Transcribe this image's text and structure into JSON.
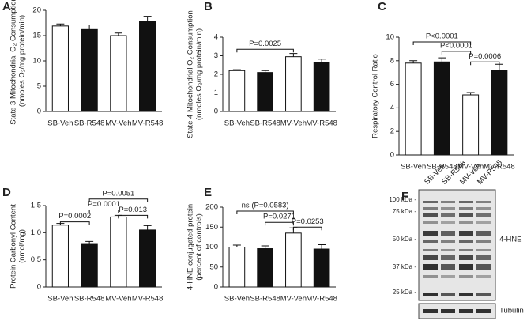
{
  "chart_data": [
    {
      "type": "bar",
      "panel": "A",
      "ylabel": [
        "State 3 Mitochondrial O₂ Consumption",
        "(nmoles O₂/mg protein/min)"
      ],
      "categories": [
        "SB-Veh",
        "SB-R548",
        "MV-Veh",
        "MV-R548"
      ],
      "values": [
        16.9,
        16.2,
        15.0,
        17.8
      ],
      "errors": [
        0.4,
        0.9,
        0.5,
        1.0
      ],
      "colors": [
        "#ffffff",
        "#111111",
        "#ffffff",
        "#111111"
      ],
      "ylim": [
        0,
        20
      ],
      "yticks": [
        0,
        5,
        10,
        15,
        20
      ],
      "annotations": []
    },
    {
      "type": "bar",
      "panel": "B",
      "ylabel": [
        "State 4 Mitochondrial O₂ Consumption",
        "(nmoles O₂/mg protein/min)"
      ],
      "categories": [
        "SB-Veh",
        "SB-R548",
        "MV-Veh",
        "MV-R548"
      ],
      "values": [
        2.2,
        2.1,
        2.95,
        2.62
      ],
      "errors": [
        0.05,
        0.1,
        0.17,
        0.2
      ],
      "colors": [
        "#ffffff",
        "#111111",
        "#ffffff",
        "#111111"
      ],
      "ylim": [
        0,
        4
      ],
      "yticks": [
        0,
        1,
        2,
        3,
        4
      ],
      "annotations": [
        {
          "text": "P=0.0025",
          "from": "SB-Veh",
          "to": "MV-Veh",
          "y": 3.35
        }
      ]
    },
    {
      "type": "bar",
      "panel": "C",
      "ylabel": [
        "Respiratory Control Ratio"
      ],
      "categories": [
        "SB-Veh",
        "SB-R548",
        "MV-Veh",
        "MV-R548"
      ],
      "values": [
        7.8,
        7.9,
        5.1,
        7.2
      ],
      "errors": [
        0.2,
        0.35,
        0.2,
        0.5
      ],
      "colors": [
        "#ffffff",
        "#111111",
        "#ffffff",
        "#111111"
      ],
      "ylim": [
        0,
        10
      ],
      "yticks": [
        0,
        2,
        4,
        6,
        8,
        10
      ],
      "annotations": [
        {
          "text": "P<0.0001",
          "from": "SB-Veh",
          "to": "MV-Veh",
          "y": 9.6
        },
        {
          "text": "P<0.0001",
          "from": "SB-R548",
          "to": "MV-Veh",
          "y": 8.8
        },
        {
          "text": "P=0.0006",
          "from": "MV-Veh",
          "to": "MV-R548",
          "y": 7.9
        }
      ]
    },
    {
      "type": "bar",
      "panel": "D",
      "ylabel": [
        "Protein Carbonyl Content",
        "(nmol/mg)"
      ],
      "categories": [
        "SB-Veh",
        "SB-R548",
        "MV-Veh",
        "MV-R548"
      ],
      "values": [
        1.14,
        0.8,
        1.29,
        1.05
      ],
      "errors": [
        0.03,
        0.04,
        0.03,
        0.08
      ],
      "colors": [
        "#ffffff",
        "#111111",
        "#ffffff",
        "#111111"
      ],
      "ylim": [
        0,
        1.5
      ],
      "yticks": [
        0,
        0.5,
        {
          "value": 1,
          "label": "1.0"
        },
        1.5
      ],
      "annotations": [
        {
          "text": "P=0.0002",
          "from": "SB-Veh",
          "to": "SB-R548",
          "y": 1.2
        },
        {
          "text": "P=0.0001",
          "from": "SB-R548",
          "to": "MV-Veh",
          "y": 1.42
        },
        {
          "text": "P=0.0051",
          "from": "SB-R548",
          "to": "MV-R548",
          "y": 1.62
        },
        {
          "text": "P=0.013",
          "from": "MV-Veh",
          "to": "MV-R548",
          "y": 1.32
        }
      ]
    },
    {
      "type": "bar",
      "panel": "E",
      "ylabel": [
        "4-HNE conjugated protein",
        "(percent of controls)"
      ],
      "categories": [
        "SB-Veh",
        "SB-R548",
        "MV-Veh",
        "MV-R548"
      ],
      "values": [
        100,
        96,
        135,
        95
      ],
      "errors": [
        5,
        7,
        13,
        11
      ],
      "colors": [
        "#ffffff",
        "#111111",
        "#ffffff",
        "#111111"
      ],
      "ylim": [
        0,
        200
      ],
      "yticks": [
        0,
        50,
        100,
        150,
        200
      ],
      "annotations": [
        {
          "text": "ns (P=0.0583)",
          "from": "SB-Veh",
          "to": "MV-Veh",
          "y": 190
        },
        {
          "text": "P=0.0271",
          "from": "SB-R548",
          "to": "MV-Veh",
          "y": 162
        },
        {
          "text": "P=0.0253",
          "from": "MV-Veh",
          "to": "MV-R548",
          "y": 150
        }
      ]
    }
  ],
  "blot": {
    "panel": "F",
    "lanes": [
      "SB-Veh",
      "SB-R548",
      "MV-Veh",
      "MV-R548"
    ],
    "markers": [
      "100 kDa -",
      "75 kDa -",
      "50 kDa -",
      "37 kDa -",
      "25 kDa -"
    ],
    "labels": [
      "4-HNE",
      "Tubulin"
    ]
  }
}
